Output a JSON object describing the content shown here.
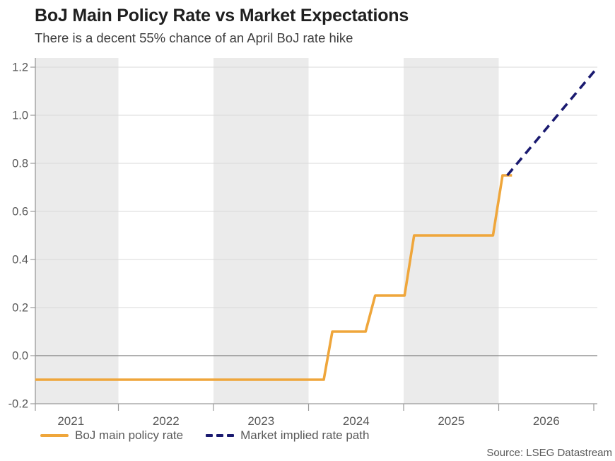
{
  "source": "Source: LSEG Datastream",
  "legend": {
    "items": [
      {
        "label": "BoJ main policy rate",
        "color": "#EFA63B",
        "style": "solid"
      },
      {
        "label": "Market implied rate path",
        "color": "#1A1A70",
        "style": "dashed"
      }
    ]
  },
  "chart_data": {
    "type": "line",
    "title": "BoJ Main Policy Rate vs Market Expectations",
    "subtitle": "There is a decent 55% chance of an April BoJ rate hike",
    "xlabel": "",
    "ylabel": "",
    "xlim": [
      2021.126,
      2027.04
    ],
    "ylim": [
      -0.2,
      1.24
    ],
    "grid": "horizontal",
    "legend_position": "bottom",
    "y_ticks": [
      {
        "v": -0.2,
        "label": "-0.2"
      },
      {
        "v": 0.0,
        "label": "0.0"
      },
      {
        "v": 0.2,
        "label": "0.2"
      },
      {
        "v": 0.4,
        "label": "0.4"
      },
      {
        "v": 0.6,
        "label": "0.6"
      },
      {
        "v": 0.8,
        "label": "0.8"
      },
      {
        "v": 1.0,
        "label": "1.0"
      },
      {
        "v": 1.2,
        "label": "1.2"
      }
    ],
    "x_tick_years": [
      2022,
      2023,
      2024,
      2025,
      2026,
      2027
    ],
    "x_labels": [
      {
        "t": 2021.5,
        "label": "2021"
      },
      {
        "t": 2022.5,
        "label": "2022"
      },
      {
        "t": 2023.5,
        "label": "2023"
      },
      {
        "t": 2024.5,
        "label": "2024"
      },
      {
        "t": 2025.5,
        "label": "2025"
      },
      {
        "t": 2026.5,
        "label": "2026"
      }
    ],
    "shaded_year_bands": [
      [
        2021,
        2022
      ],
      [
        2023,
        2024
      ],
      [
        2025,
        2026
      ]
    ],
    "band_color": "#ebebeb",
    "grid_color": "#d9d9d9",
    "zero_line_color": "#808080",
    "axis_color": "#9a9a9a",
    "series": [
      {
        "name": "BoJ main policy rate",
        "color": "#EFA63B",
        "dash": "solid",
        "points": [
          [
            2021.126,
            -0.1
          ],
          [
            2024.16,
            -0.1
          ],
          [
            2024.25,
            0.1
          ],
          [
            2024.6,
            0.1
          ],
          [
            2024.7,
            0.25
          ],
          [
            2025.01,
            0.25
          ],
          [
            2025.11,
            0.5
          ],
          [
            2025.94,
            0.5
          ],
          [
            2026.04,
            0.75
          ],
          [
            2026.14,
            0.75
          ]
        ]
      },
      {
        "name": "Market implied rate path",
        "color": "#1A1A70",
        "dash": "dashed",
        "points": [
          [
            2026.09,
            0.75
          ],
          [
            2027.02,
            1.19
          ]
        ]
      }
    ]
  }
}
